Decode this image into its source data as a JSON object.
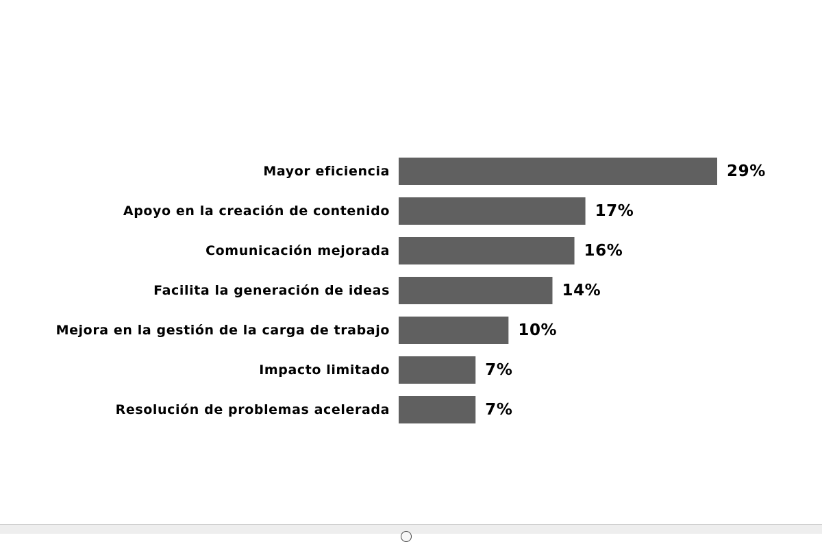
{
  "chart_data": {
    "type": "bar",
    "orientation": "horizontal",
    "categories": [
      "Mayor eficiencia",
      "Apoyo en la creación de contenido",
      "Comunicación mejorada",
      "Facilita la generación de ideas",
      "Mejora en la gestión de la carga de trabajo",
      "Impacto limitado",
      "Resolución de problemas acelerada"
    ],
    "values": [
      29,
      17,
      16,
      14,
      10,
      7,
      7
    ],
    "value_labels": [
      "29%",
      "17%",
      "16%",
      "14%",
      "10%",
      "7%",
      "7%"
    ],
    "unit": "%",
    "bar_color": "#606060",
    "title": "",
    "xlabel": "",
    "ylabel": "",
    "xlim": [
      0,
      29
    ],
    "grid": false,
    "legend": "none"
  }
}
